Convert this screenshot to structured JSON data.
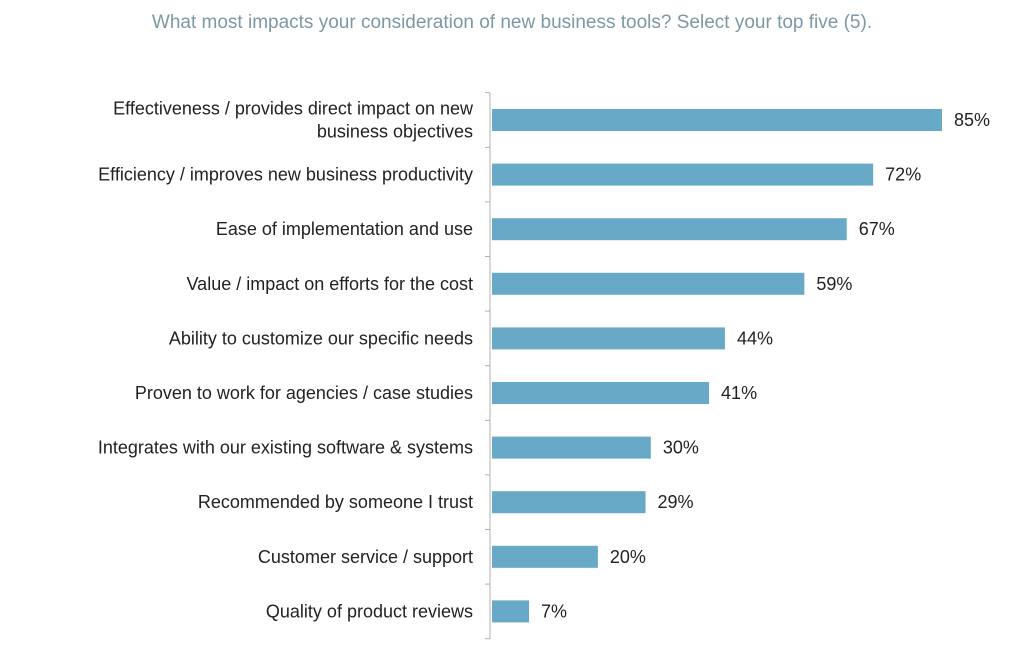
{
  "chart_data": {
    "type": "bar",
    "orientation": "horizontal",
    "title": "What most impacts your consideration of new business tools? Select your top five (5).",
    "categories": [
      [
        "Effectiveness / provides direct impact on new",
        "business objectives"
      ],
      [
        "Efficiency / improves new business productivity"
      ],
      [
        "Ease of implementation and use"
      ],
      [
        "Value / impact on efforts for the cost"
      ],
      [
        "Ability to customize our specific needs"
      ],
      [
        "Proven to work for agencies / case studies"
      ],
      [
        "Integrates with our existing software & systems"
      ],
      [
        "Recommended by someone I trust"
      ],
      [
        "Customer service / support"
      ],
      [
        "Quality of product reviews"
      ]
    ],
    "values": [
      85,
      72,
      67,
      59,
      44,
      41,
      30,
      29,
      20,
      7
    ],
    "value_labels": [
      "85%",
      "72%",
      "67%",
      "59%",
      "44%",
      "41%",
      "30%",
      "29%",
      "20%",
      "7%"
    ],
    "xlim": [
      0,
      85
    ],
    "bar_color": "#67a9c7",
    "grid": false,
    "legend": "none"
  }
}
